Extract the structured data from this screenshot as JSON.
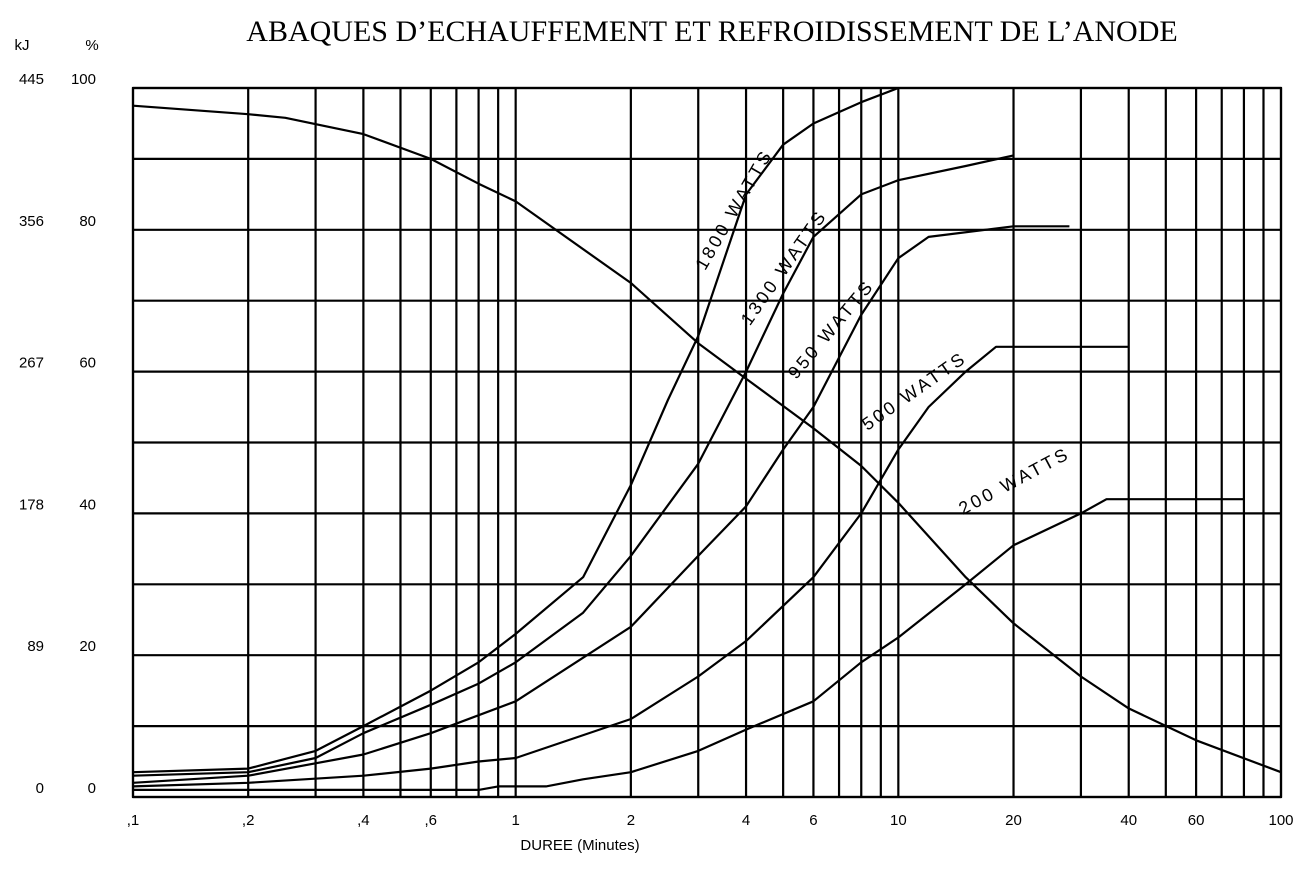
{
  "chart_data": {
    "type": "line",
    "title": "ABAQUES D’ECHAUFFEMENT ET REFROIDISSEMENT DE L’ANODE",
    "y_label": "%",
    "y2_label": "kJ",
    "x_label": "DUREE (Minutes)",
    "xscale": "log",
    "grid": true,
    "xlim": [
      0.1,
      100
    ],
    "xticks": [
      {
        "value": 0.1,
        "label": ",1"
      },
      {
        "value": 0.2,
        "label": ",2"
      },
      {
        "value": 0.4,
        "label": ",4"
      },
      {
        "value": 0.6,
        "label": ",6"
      },
      1,
      2,
      4,
      6,
      10,
      20,
      40,
      60,
      100
    ],
    "x_minor_ticks": [
      0.3,
      0.5,
      0.7,
      0.8,
      0.9,
      3,
      5,
      7,
      8,
      9,
      30,
      50,
      70,
      80,
      90
    ],
    "ylim": [
      0,
      100
    ],
    "yticks": [
      0,
      20,
      40,
      60,
      80,
      100
    ],
    "y_minor_ticks": [
      10,
      30,
      50,
      70,
      90
    ],
    "y2lim": [
      0,
      445
    ],
    "y2ticks": [
      0,
      89,
      178,
      267,
      356,
      445
    ],
    "series": [
      {
        "name": "1800 WATTS",
        "color": "#000000",
        "x": [
          0.1,
          0.2,
          0.3,
          0.4,
          0.6,
          0.8,
          1,
          1.5,
          2,
          2.5,
          3,
          4,
          5,
          6,
          8,
          10
        ],
        "values": [
          3.5,
          4,
          6.5,
          10,
          15,
          19,
          23,
          31,
          44,
          56,
          65,
          85,
          92,
          95,
          98,
          100
        ]
      },
      {
        "name": "1300 WATTS",
        "color": "#000000",
        "x": [
          0.1,
          0.2,
          0.3,
          0.4,
          0.6,
          0.8,
          1,
          1.5,
          2,
          3,
          4,
          5,
          6,
          8,
          10,
          15,
          20
        ],
        "values": [
          3,
          3.5,
          5.5,
          9,
          13,
          16,
          19,
          26,
          34,
          47,
          60,
          71,
          79,
          85,
          87,
          89,
          90.5
        ]
      },
      {
        "name": "950 WATTS",
        "color": "#000000",
        "x": [
          0.1,
          0.2,
          0.4,
          0.6,
          1,
          2,
          3,
          4,
          5,
          6,
          8,
          10,
          12,
          20,
          28
        ],
        "values": [
          2,
          3,
          6,
          9,
          13.5,
          24,
          34,
          41,
          49,
          55,
          68,
          76,
          79,
          80.5,
          80.5
        ]
      },
      {
        "name": "500 WATTS",
        "color": "#000000",
        "x": [
          0.1,
          0.2,
          0.4,
          0.6,
          0.8,
          1,
          2,
          3,
          4,
          6,
          8,
          10,
          12,
          15,
          18,
          20,
          40
        ],
        "values": [
          1.5,
          2,
          3,
          4,
          5,
          5.5,
          11,
          17,
          22,
          31,
          40,
          49,
          55,
          60,
          63.5,
          63.5,
          63.5
        ]
      },
      {
        "name": "200 WATTS",
        "color": "#000000",
        "x": [
          0.1,
          0.5,
          0.8,
          0.9,
          1,
          1.2,
          1.5,
          2,
          3,
          4,
          6,
          8,
          10,
          15,
          20,
          30,
          35,
          40,
          80
        ],
        "values": [
          1,
          1,
          1,
          1.5,
          1.5,
          1.5,
          2.5,
          3.5,
          6.5,
          9.5,
          13.5,
          19,
          22.5,
          30,
          35.5,
          40,
          42,
          42,
          42
        ]
      }
    ],
    "cooling": {
      "color": "#000000",
      "x": [
        0.1,
        0.2,
        0.25,
        0.4,
        0.6,
        0.8,
        1,
        2,
        3,
        4,
        6,
        8,
        10,
        15,
        20,
        30,
        40,
        60,
        100
      ],
      "values": [
        97.5,
        96.3,
        95.8,
        93.5,
        90,
        86.5,
        84,
        72.5,
        64,
        59,
        52,
        46.7,
        41.5,
        31,
        24.5,
        17,
        12.5,
        8,
        3.5
      ]
    }
  }
}
